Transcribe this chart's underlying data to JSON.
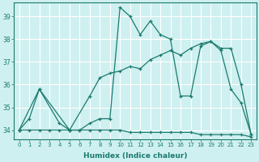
{
  "xlabel": "Humidex (Indice chaleur)",
  "ylabel": "",
  "bg_color": "#cff0f0",
  "line_color": "#1a7a6e",
  "grid_color": "#ffffff",
  "xlim": [
    -0.5,
    23.5
  ],
  "ylim": [
    33.6,
    39.6
  ],
  "yticks": [
    34,
    35,
    36,
    37,
    38,
    39
  ],
  "xticks": [
    0,
    1,
    2,
    3,
    4,
    5,
    6,
    7,
    8,
    9,
    10,
    11,
    12,
    13,
    14,
    15,
    16,
    17,
    18,
    19,
    20,
    21,
    22,
    23
  ],
  "series1_x": [
    0,
    1,
    2,
    4,
    5,
    6,
    7,
    8,
    9,
    10,
    11,
    12,
    13,
    14,
    15,
    16,
    17,
    18,
    19,
    20,
    21,
    22,
    23
  ],
  "series1_y": [
    34.0,
    34.5,
    35.8,
    34.3,
    34.0,
    34.0,
    34.3,
    34.5,
    34.5,
    39.4,
    39.0,
    38.2,
    38.8,
    38.2,
    38.0,
    35.5,
    35.5,
    37.7,
    37.9,
    37.5,
    35.8,
    35.2,
    33.8
  ],
  "series2_x": [
    0,
    2,
    5,
    7,
    8,
    9,
    10,
    11,
    12,
    13,
    14,
    15,
    16,
    17,
    18,
    19,
    20,
    21,
    22,
    23
  ],
  "series2_y": [
    34.0,
    35.8,
    34.0,
    35.5,
    36.3,
    36.5,
    36.6,
    36.8,
    36.7,
    37.1,
    37.3,
    37.5,
    37.3,
    37.6,
    37.8,
    37.9,
    37.6,
    37.6,
    36.0,
    33.8
  ],
  "series3_x": [
    0,
    1,
    2,
    3,
    4,
    5,
    6,
    7,
    8,
    9,
    10,
    11,
    12,
    13,
    14,
    15,
    16,
    17,
    18,
    19,
    20,
    21,
    22,
    23
  ],
  "series3_y": [
    34.0,
    34.0,
    34.0,
    34.0,
    34.0,
    34.0,
    34.0,
    34.0,
    34.0,
    34.0,
    34.0,
    33.9,
    33.9,
    33.9,
    33.9,
    33.9,
    33.9,
    33.9,
    33.8,
    33.8,
    33.8,
    33.8,
    33.8,
    33.7
  ]
}
